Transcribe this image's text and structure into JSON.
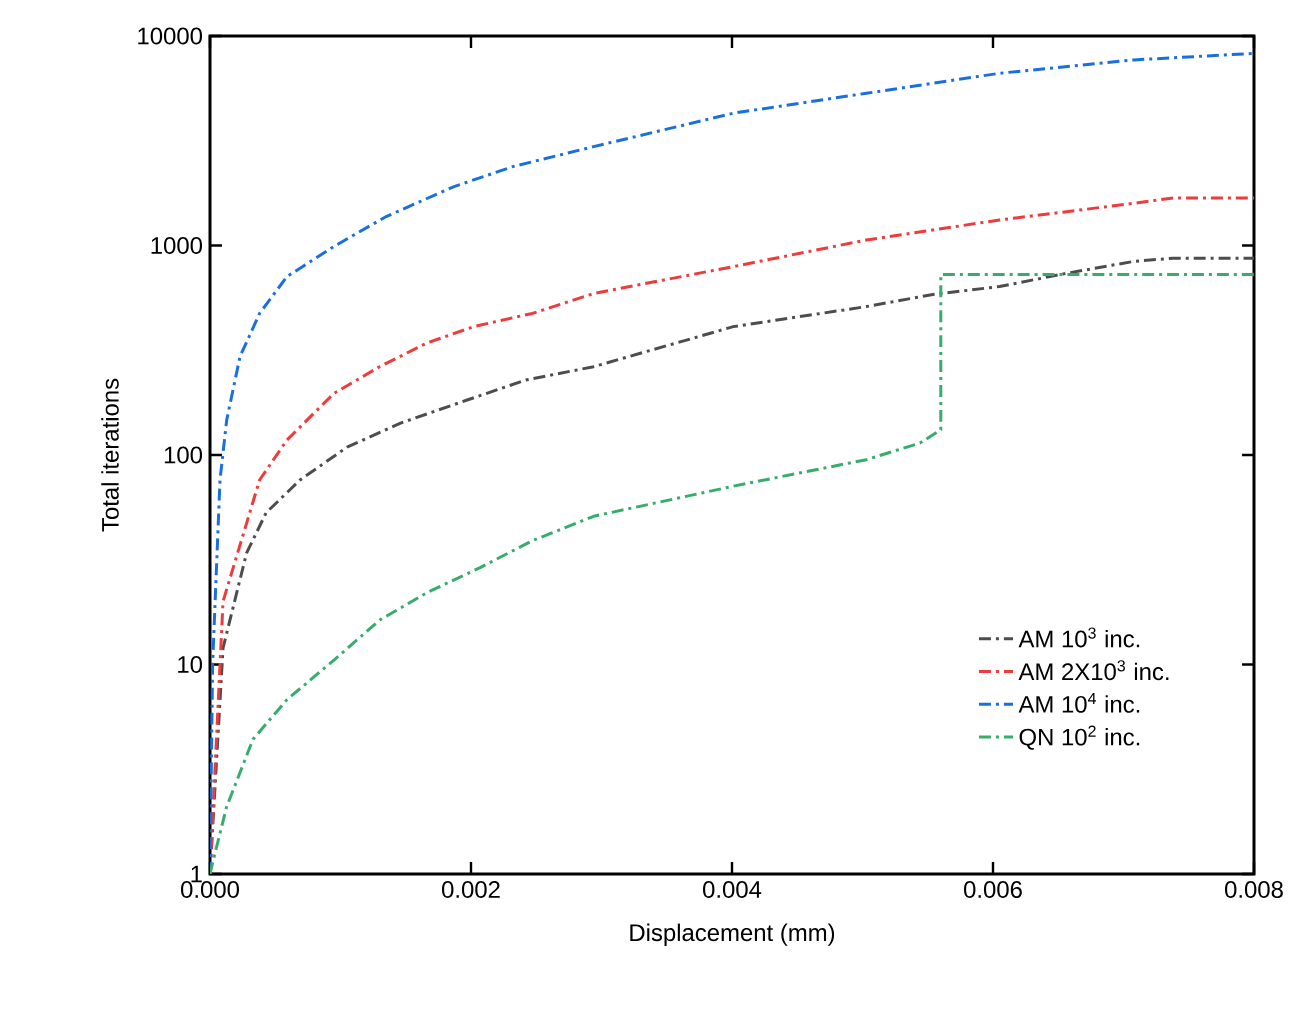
{
  "chart_data": {
    "type": "line",
    "xlabel": "Displacement (mm)",
    "ylabel": "Total iterations",
    "log": "y",
    "xlim": [
      0,
      0.008
    ],
    "ylim": [
      1,
      10000
    ],
    "xticks": [
      {
        "value": 0,
        "label": "0.000"
      },
      {
        "value": 0.002,
        "label": "0.002"
      },
      {
        "value": 0.004,
        "label": "0.004"
      },
      {
        "value": 0.006,
        "label": "0.006"
      },
      {
        "value": 0.008,
        "label": "0.008"
      }
    ],
    "yticks": [
      1,
      10,
      100,
      1000,
      10000
    ],
    "legend": "bottom right",
    "grid": false,
    "marker": "none",
    "line_style": "dashdot",
    "series": [
      {
        "name": "AM 10$^{3}$ inc.",
        "color": "#4d4d4d",
        "x": [
          0,
          0.0001,
          0.00028,
          0.00043,
          0.00069,
          0.00105,
          0.00146,
          0.00197,
          0.00242,
          0.00294,
          0.00401,
          0.00503,
          0.00554,
          0.00605,
          0.00656,
          0.00708,
          0.00738,
          0.008
        ],
        "values": [
          1,
          12,
          34,
          53,
          76,
          109,
          142,
          183,
          228,
          264,
          410,
          511,
          584,
          637,
          736,
          840,
          870,
          870
        ]
      },
      {
        "name": "AM 2X10$^{3}$ inc.",
        "color": "#ee3b3b",
        "x": [
          0,
          0.0001,
          0.00038,
          0.00059,
          0.00095,
          0.0013,
          0.00166,
          0.00202,
          0.00247,
          0.00294,
          0.00401,
          0.00503,
          0.00605,
          0.00708,
          0.00738,
          0.008
        ],
        "values": [
          1,
          20,
          76,
          118,
          197,
          264,
          342,
          410,
          474,
          590,
          793,
          1062,
          1324,
          1590,
          1687,
          1687
        ]
      },
      {
        "name": "AM 10$^{4}$ inc.",
        "color": "#1a6fdf",
        "x": [
          0,
          2e-05,
          7.66e-05,
          0.000128,
          0.00023,
          0.00038,
          0.00059,
          0.00095,
          0.00135,
          0.00187,
          0.00232,
          0.00294,
          0.00401,
          0.00503,
          0.00605,
          0.00708,
          0.008
        ],
        "values": [
          1,
          10,
          76,
          147,
          295,
          474,
          711,
          990,
          1375,
          1910,
          2380,
          2965,
          4280,
          5330,
          6640,
          7690,
          8260
        ]
      },
      {
        "name": "QN 10$^{2}$ inc.",
        "color": "#37ad6b",
        "x": [
          0,
          2.6e-05,
          0.000128,
          0.00033,
          0.00059,
          0.00095,
          0.0013,
          0.00166,
          0.00207,
          0.00247,
          0.00294,
          0.00401,
          0.00503,
          0.00544,
          0.0056,
          0.0056,
          0.00605,
          0.008
        ],
        "values": [
          1,
          1.17,
          2.1,
          4.4,
          6.8,
          10.5,
          16.3,
          22,
          29,
          39,
          51,
          71,
          95,
          114,
          132,
          727,
          727,
          727
        ]
      }
    ]
  }
}
